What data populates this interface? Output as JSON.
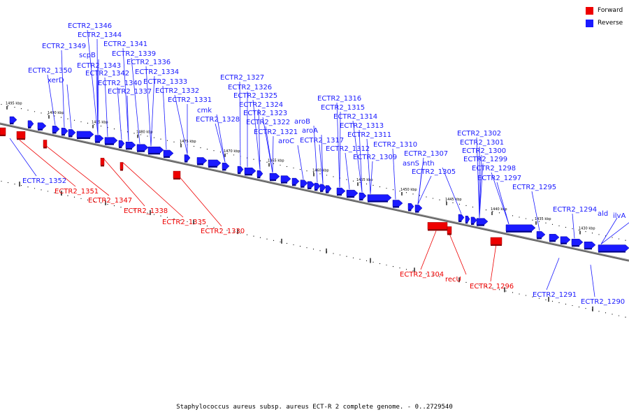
{
  "legend": [
    {
      "label": "Forward",
      "color": "#ee0000"
    },
    {
      "label": "Reverse",
      "color": "#1a1aff"
    }
  ],
  "colors": {
    "forward": "#ee0000",
    "reverse": "#1a1aff",
    "backbone": "#666666"
  },
  "caption": "Staphylococcus aureus subsp. aureus ECT-R 2 complete genome. - 0..2729540",
  "ticks": [
    "1495 kbp",
    "1490 kbp",
    "1485 kbp",
    "1480 kbp",
    "1475 kbp",
    "1470 kbp",
    "1465 kbp",
    "1460 kbp",
    "1455 kbp",
    "1450 kbp",
    "1445 kbp",
    "1440 kbp",
    "1435 kbp",
    "1430 kbp"
  ],
  "reverse_genes": [
    {
      "label": "ECTR2_1352",
      "label_below": true
    },
    {
      "label": "ECTR2_1350"
    },
    {
      "label": "xerD"
    },
    {
      "label": "ECTR2_1349"
    },
    {
      "label": "ECTR2_1346"
    },
    {
      "label": "ECTR2_1344"
    },
    {
      "label": "scpB"
    },
    {
      "label": "ECTR2_1343"
    },
    {
      "label": "ECTR2_1342"
    },
    {
      "label": "ECTR2_1341"
    },
    {
      "label": "ECTR2_1340"
    },
    {
      "label": "ECTR2_1339"
    },
    {
      "label": "ECTR2_1337"
    },
    {
      "label": "ECTR2_1336"
    },
    {
      "label": "ECTR2_1334"
    },
    {
      "label": "ECTR2_1333"
    },
    {
      "label": "ECTR2_1332"
    },
    {
      "label": "ECTR2_1331"
    },
    {
      "label": "cmk"
    },
    {
      "label": "ECTR2_1328"
    },
    {
      "label": "ECTR2_1327"
    },
    {
      "label": "ECTR2_1326"
    },
    {
      "label": "ECTR2_1325"
    },
    {
      "label": "ECTR2_1324"
    },
    {
      "label": "ECTR2_1323"
    },
    {
      "label": "ECTR2_1322"
    },
    {
      "label": "ECTR2_1321"
    },
    {
      "label": "aroC"
    },
    {
      "label": "aroB"
    },
    {
      "label": "aroA"
    },
    {
      "label": "ECTR2_1317"
    },
    {
      "label": "ECTR2_1316"
    },
    {
      "label": "ECTR2_1315"
    },
    {
      "label": "ECTR2_1314"
    },
    {
      "label": "ECTR2_1313"
    },
    {
      "label": "ECTR2_1312"
    },
    {
      "label": "ECTR2_1311"
    },
    {
      "label": "ECTR2_1310"
    },
    {
      "label": "ECTR2_1309"
    },
    {
      "label": "asnS"
    },
    {
      "label": "ECTR2_1307"
    },
    {
      "label": "nth"
    },
    {
      "label": "ECTR2_1305"
    },
    {
      "label": "ECTR2_1302"
    },
    {
      "label": "ECTR2_1301"
    },
    {
      "label": "ECTR2_1300"
    },
    {
      "label": "ECTR2_1299"
    },
    {
      "label": "ECTR2_1298"
    },
    {
      "label": "ECTR2_1297"
    },
    {
      "label": "ECTR2_1295"
    },
    {
      "label": "ECTR2_1294"
    },
    {
      "label": "ald"
    },
    {
      "label": "ilvA"
    },
    {
      "label": "ECTR2_1291",
      "label_below": true
    },
    {
      "label": "ECTR2_1290",
      "label_below": true
    }
  ],
  "forward_genes": [
    {
      "label": "ECTR2_1351"
    },
    {
      "label": "ECTR2_1347"
    },
    {
      "label": "ECTR2_1338"
    },
    {
      "label": "ECTR2_1335"
    },
    {
      "label": "ECTR2_1330"
    },
    {
      "label": "ECTR2_1304"
    },
    {
      "label": "recU"
    },
    {
      "label": "ECTR2_1296"
    }
  ]
}
